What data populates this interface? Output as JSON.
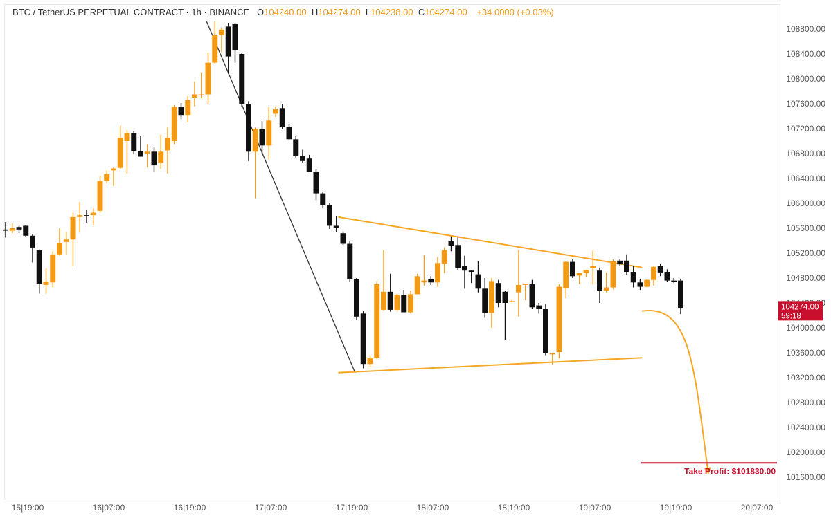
{
  "header": {
    "symbol": "BTC / TetherUS PERPETUAL CONTRACT · 1h · BINANCE",
    "open_label": "O",
    "open": "104240.00",
    "high_label": "H",
    "high": "104274.00",
    "low_label": "L",
    "low": "104238.00",
    "close_label": "C",
    "close": "104274.00",
    "change": "+34.0000 (+0.03%)"
  },
  "price_badge": {
    "price": "104274.00",
    "countdown": "59:18"
  },
  "take_profit_label": "Take Profit: $101830.00",
  "colors": {
    "up": "#f29a16",
    "down": "#111111",
    "pattern_line": "#f5a623",
    "take_profit": "#c8102e",
    "badge_bg": "#c8102e",
    "axis_text": "#555555"
  },
  "chart_data": {
    "type": "candlestick",
    "timeframe": "1h",
    "y_axis": {
      "ticks": [
        108800,
        108400,
        108000,
        107600,
        107200,
        106800,
        106400,
        106000,
        105600,
        105200,
        104800,
        104400,
        104000,
        103600,
        103200,
        102800,
        102400,
        102000,
        101600
      ],
      "tick_labels": [
        "108800.00",
        "108400.00",
        "108000.00",
        "107600.00",
        "107200.00",
        "106800.00",
        "106400.00",
        "106000.00",
        "105600.00",
        "105200.00",
        "104800.00",
        "104400.00",
        "104000.00",
        "103600.00",
        "103200.00",
        "102800.00",
        "102400.00",
        "102000.00",
        "101600.00"
      ]
    },
    "x_axis": {
      "tick_labels": [
        "15|19:00",
        "16|07:00",
        "16|19:00",
        "17|07:00",
        "17|19:00",
        "18|07:00",
        "18|19:00",
        "19|07:00",
        "19|19:00",
        "20|07:00"
      ]
    },
    "candles": [
      {
        "o": 105580,
        "h": 105700,
        "l": 105450,
        "c": 105560
      },
      {
        "o": 105560,
        "h": 105680,
        "l": 105520,
        "c": 105600
      },
      {
        "o": 105620,
        "h": 105640,
        "l": 105520,
        "c": 105580
      },
      {
        "o": 105640,
        "h": 105650,
        "l": 105460,
        "c": 105480
      },
      {
        "o": 105480,
        "h": 105500,
        "l": 105050,
        "c": 105290
      },
      {
        "o": 105250,
        "h": 105260,
        "l": 104550,
        "c": 104700
      },
      {
        "o": 104690,
        "h": 104960,
        "l": 104550,
        "c": 104740
      },
      {
        "o": 104730,
        "h": 105230,
        "l": 104650,
        "c": 105180
      },
      {
        "o": 105180,
        "h": 105600,
        "l": 105160,
        "c": 105360
      },
      {
        "o": 105380,
        "h": 105540,
        "l": 105180,
        "c": 105420
      },
      {
        "o": 105420,
        "h": 105850,
        "l": 104990,
        "c": 105780
      },
      {
        "o": 105780,
        "h": 106020,
        "l": 105530,
        "c": 105810
      },
      {
        "o": 105810,
        "h": 105890,
        "l": 105690,
        "c": 105800
      },
      {
        "o": 105810,
        "h": 105920,
        "l": 105650,
        "c": 105850
      },
      {
        "o": 105880,
        "h": 106440,
        "l": 105850,
        "c": 106360
      },
      {
        "o": 106360,
        "h": 106530,
        "l": 106320,
        "c": 106470
      },
      {
        "o": 106530,
        "h": 106580,
        "l": 106280,
        "c": 106560
      },
      {
        "o": 106570,
        "h": 107250,
        "l": 106550,
        "c": 107050
      },
      {
        "o": 107000,
        "h": 107180,
        "l": 106480,
        "c": 107130
      },
      {
        "o": 107130,
        "h": 107160,
        "l": 106800,
        "c": 106840
      },
      {
        "o": 106840,
        "h": 107080,
        "l": 106750,
        "c": 106750
      },
      {
        "o": 106800,
        "h": 106950,
        "l": 106580,
        "c": 106830
      },
      {
        "o": 106830,
        "h": 106910,
        "l": 106510,
        "c": 106610
      },
      {
        "o": 106650,
        "h": 107100,
        "l": 106550,
        "c": 106830
      },
      {
        "o": 106850,
        "h": 107220,
        "l": 106480,
        "c": 107050
      },
      {
        "o": 107000,
        "h": 107580,
        "l": 106950,
        "c": 107550
      },
      {
        "o": 107550,
        "h": 107610,
        "l": 107350,
        "c": 107420
      },
      {
        "o": 107420,
        "h": 107720,
        "l": 107300,
        "c": 107660
      },
      {
        "o": 107700,
        "h": 107960,
        "l": 107560,
        "c": 107750
      },
      {
        "o": 107750,
        "h": 108100,
        "l": 107700,
        "c": 107750
      },
      {
        "o": 107750,
        "h": 108420,
        "l": 107600,
        "c": 108260
      },
      {
        "o": 108260,
        "h": 108920,
        "l": 108250,
        "c": 108700
      },
      {
        "o": 108700,
        "h": 108830,
        "l": 108430,
        "c": 108790
      },
      {
        "o": 108840,
        "h": 108900,
        "l": 108080,
        "c": 108360
      },
      {
        "o": 108880,
        "h": 108900,
        "l": 108260,
        "c": 108460
      },
      {
        "o": 108400,
        "h": 108420,
        "l": 107550,
        "c": 107600
      },
      {
        "o": 107600,
        "h": 107640,
        "l": 106680,
        "c": 106830
      },
      {
        "o": 106830,
        "h": 107220,
        "l": 106080,
        "c": 107200
      },
      {
        "o": 107200,
        "h": 107320,
        "l": 106800,
        "c": 106930
      },
      {
        "o": 106930,
        "h": 107550,
        "l": 106710,
        "c": 107330
      },
      {
        "o": 107440,
        "h": 107560,
        "l": 107390,
        "c": 107510
      },
      {
        "o": 107530,
        "h": 107600,
        "l": 107190,
        "c": 107230
      },
      {
        "o": 107230,
        "h": 107280,
        "l": 107030,
        "c": 107030
      },
      {
        "o": 107030,
        "h": 107080,
        "l": 106720,
        "c": 106760
      },
      {
        "o": 106760,
        "h": 106860,
        "l": 106650,
        "c": 106680
      },
      {
        "o": 106720,
        "h": 106780,
        "l": 106500,
        "c": 106500
      },
      {
        "o": 106500,
        "h": 106550,
        "l": 106050,
        "c": 106160
      },
      {
        "o": 106160,
        "h": 106190,
        "l": 105920,
        "c": 105970
      },
      {
        "o": 105970,
        "h": 106010,
        "l": 105590,
        "c": 105640
      },
      {
        "o": 105640,
        "h": 105800,
        "l": 105540,
        "c": 105600
      },
      {
        "o": 105520,
        "h": 105550,
        "l": 105330,
        "c": 105350
      },
      {
        "o": 105350,
        "h": 105400,
        "l": 104740,
        "c": 104780
      },
      {
        "o": 104780,
        "h": 104800,
        "l": 104130,
        "c": 104180
      },
      {
        "o": 104230,
        "h": 104270,
        "l": 103350,
        "c": 103420
      },
      {
        "o": 103420,
        "h": 103560,
        "l": 103370,
        "c": 103510
      },
      {
        "o": 103520,
        "h": 104750,
        "l": 103500,
        "c": 104700
      },
      {
        "o": 104290,
        "h": 105250,
        "l": 104280,
        "c": 104580
      },
      {
        "o": 104580,
        "h": 104870,
        "l": 104260,
        "c": 104290
      },
      {
        "o": 104290,
        "h": 104550,
        "l": 104260,
        "c": 104530
      },
      {
        "o": 104530,
        "h": 104610,
        "l": 104250,
        "c": 104250
      },
      {
        "o": 104250,
        "h": 104600,
        "l": 104230,
        "c": 104540
      },
      {
        "o": 104540,
        "h": 104870,
        "l": 104540,
        "c": 104830
      },
      {
        "o": 104730,
        "h": 105170,
        "l": 104680,
        "c": 104760
      },
      {
        "o": 104780,
        "h": 104830,
        "l": 104690,
        "c": 104730
      },
      {
        "o": 104730,
        "h": 105140,
        "l": 104660,
        "c": 105040
      },
      {
        "o": 105030,
        "h": 105290,
        "l": 104880,
        "c": 105250
      },
      {
        "o": 105400,
        "h": 105470,
        "l": 105230,
        "c": 105320
      },
      {
        "o": 105330,
        "h": 105450,
        "l": 104930,
        "c": 104960
      },
      {
        "o": 105000,
        "h": 105160,
        "l": 104630,
        "c": 104920
      },
      {
        "o": 104920,
        "h": 104930,
        "l": 104720,
        "c": 104900
      },
      {
        "o": 104860,
        "h": 105070,
        "l": 104570,
        "c": 104630
      },
      {
        "o": 104630,
        "h": 104800,
        "l": 104160,
        "c": 104240
      },
      {
        "o": 104240,
        "h": 104800,
        "l": 104000,
        "c": 104750
      },
      {
        "o": 104720,
        "h": 104770,
        "l": 104330,
        "c": 104400
      },
      {
        "o": 104580,
        "h": 104590,
        "l": 103800,
        "c": 104400
      },
      {
        "o": 104420,
        "h": 104460,
        "l": 104410,
        "c": 104430
      },
      {
        "o": 104570,
        "h": 105250,
        "l": 104180,
        "c": 104690
      },
      {
        "o": 104690,
        "h": 104710,
        "l": 104450,
        "c": 104710
      },
      {
        "o": 104710,
        "h": 104770,
        "l": 104300,
        "c": 104330
      },
      {
        "o": 104360,
        "h": 104400,
        "l": 104230,
        "c": 104300
      },
      {
        "o": 104300,
        "h": 104380,
        "l": 103560,
        "c": 103590
      },
      {
        "o": 103590,
        "h": 103600,
        "l": 103410,
        "c": 103590
      },
      {
        "o": 103610,
        "h": 104700,
        "l": 103510,
        "c": 104660
      },
      {
        "o": 104640,
        "h": 105070,
        "l": 104480,
        "c": 105060
      },
      {
        "o": 105060,
        "h": 105100,
        "l": 104800,
        "c": 104830
      },
      {
        "o": 104840,
        "h": 104880,
        "l": 104700,
        "c": 104880
      },
      {
        "o": 104880,
        "h": 104920,
        "l": 104820,
        "c": 104930
      },
      {
        "o": 104960,
        "h": 105240,
        "l": 104700,
        "c": 104990
      },
      {
        "o": 104920,
        "h": 104970,
        "l": 104400,
        "c": 104600
      },
      {
        "o": 104600,
        "h": 104890,
        "l": 104570,
        "c": 104650
      },
      {
        "o": 104650,
        "h": 105100,
        "l": 104620,
        "c": 105070
      },
      {
        "o": 105080,
        "h": 105110,
        "l": 104990,
        "c": 105020
      },
      {
        "o": 105080,
        "h": 105180,
        "l": 104850,
        "c": 104900
      },
      {
        "o": 104900,
        "h": 105000,
        "l": 104650,
        "c": 104730
      },
      {
        "o": 104730,
        "h": 104790,
        "l": 104610,
        "c": 104660
      },
      {
        "o": 104660,
        "h": 104780,
        "l": 104650,
        "c": 104770
      },
      {
        "o": 104770,
        "h": 105000,
        "l": 104680,
        "c": 104980
      },
      {
        "o": 104990,
        "h": 105030,
        "l": 104830,
        "c": 104890
      },
      {
        "o": 104900,
        "h": 104940,
        "l": 104740,
        "c": 104760
      },
      {
        "o": 104760,
        "h": 104800,
        "l": 104720,
        "c": 104740
      },
      {
        "o": 104760,
        "h": 104790,
        "l": 104220,
        "c": 104310
      }
    ],
    "drawings": {
      "drop_line": [
        {
          "t": "16|21:30",
          "p": 108920
        },
        {
          "t": "17|19:30",
          "p": 103280
        }
      ],
      "upper_trendline": [
        {
          "t": "17|17:00",
          "p": 105780
        },
        {
          "t": "19|14:00",
          "p": 104970
        }
      ],
      "lower_trendline": [
        {
          "t": "17|17:00",
          "p": 103280
        },
        {
          "t": "19|14:00",
          "p": 103520
        }
      ],
      "projection_arrow": {
        "from": {
          "t": "19|14:00",
          "p": 104270
        },
        "to": {
          "t": "19|23:45",
          "p": 101700
        }
      },
      "take_profit": {
        "p": 101830
      }
    }
  }
}
